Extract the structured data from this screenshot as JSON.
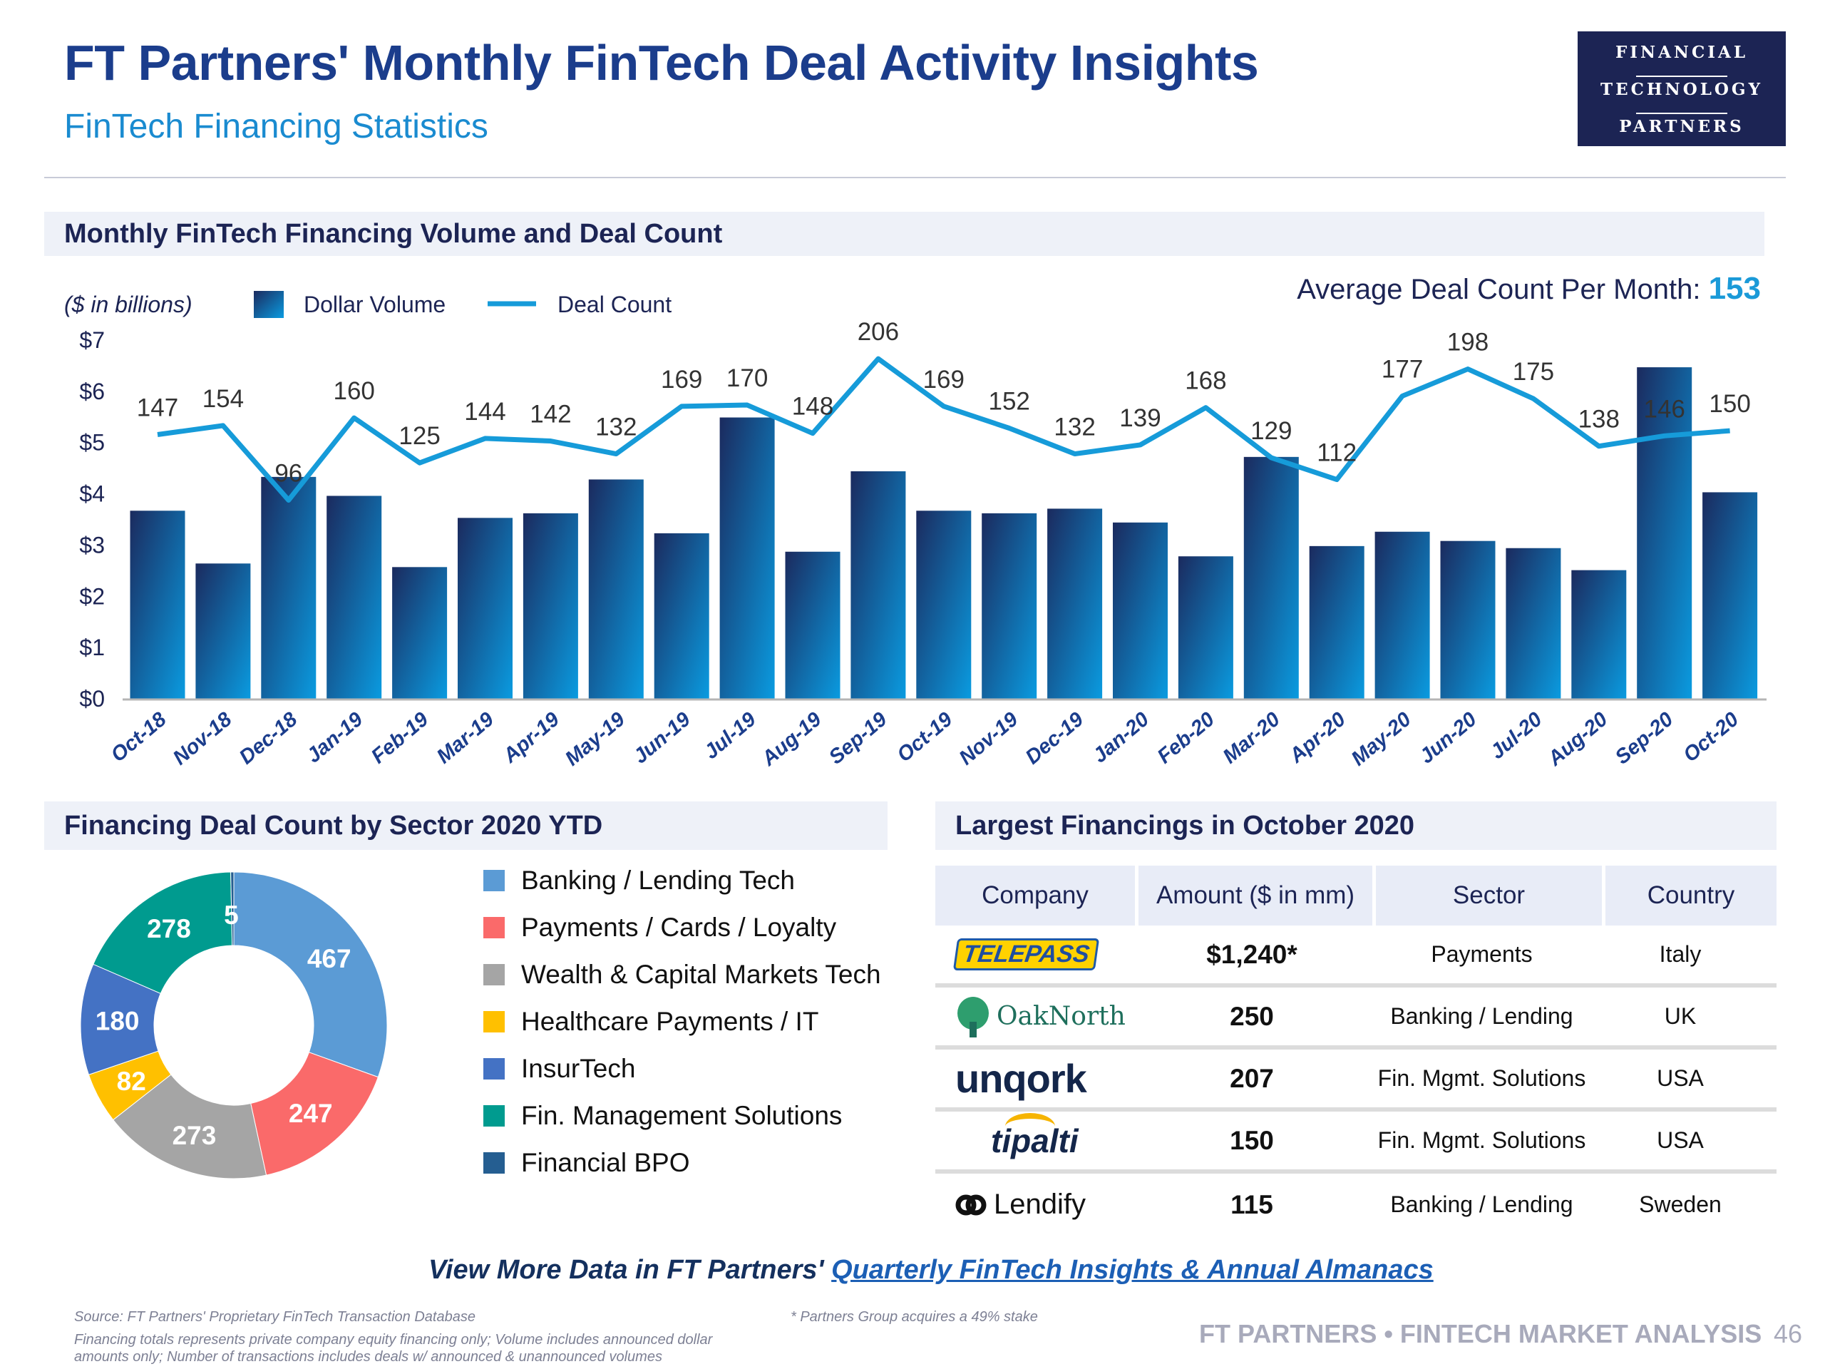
{
  "header": {
    "title": "FT Partners' Monthly FinTech Deal Activity Insights",
    "subtitle": "FinTech Financing Statistics",
    "logo_lines": [
      "FINANCIAL",
      "TECHNOLOGY",
      "PARTNERS"
    ]
  },
  "sections": {
    "monthly": "Monthly FinTech Financing Volume and Deal Count",
    "sector": "Financing Deal Count by Sector 2020 YTD",
    "largest": "Largest Financings in October 2020"
  },
  "avg": {
    "label": "Average Deal Count Per Month:",
    "value": "153"
  },
  "chart_data": [
    {
      "type": "bar+line",
      "title": "Monthly FinTech Financing Volume and Deal Count",
      "ylabel": "($ in billions)",
      "yticks": [
        "$0",
        "$1",
        "$2",
        "$3",
        "$4",
        "$5",
        "$6",
        "$7"
      ],
      "ylim": [
        0,
        7
      ],
      "y2lim": [
        -58.5,
        220.5
      ],
      "legend": [
        "Dollar Volume",
        "Deal Count"
      ],
      "legend_position": "top-left",
      "categories": [
        "Oct-18",
        "Nov-18",
        "Dec-18",
        "Jan-19",
        "Feb-19",
        "Mar-19",
        "Apr-19",
        "May-19",
        "Jun-19",
        "Jul-19",
        "Aug-19",
        "Sep-19",
        "Oct-19",
        "Nov-19",
        "Dec-19",
        "Jan-20",
        "Feb-20",
        "Mar-20",
        "Apr-20",
        "May-20",
        "Jun-20",
        "Jul-20",
        "Aug-20",
        "Sep-20",
        "Oct-20"
      ],
      "series": [
        {
          "name": "Dollar Volume",
          "type": "bar",
          "values": [
            3.67,
            2.64,
            4.33,
            3.96,
            2.57,
            3.53,
            3.62,
            4.28,
            3.23,
            5.49,
            2.87,
            4.44,
            3.67,
            3.62,
            3.71,
            3.44,
            2.78,
            4.72,
            2.98,
            3.26,
            3.08,
            2.94,
            2.51,
            6.47,
            4.03
          ]
        },
        {
          "name": "Deal Count",
          "type": "line",
          "values": [
            147,
            154,
            96,
            160,
            125,
            144,
            142,
            132,
            169,
            170,
            148,
            206,
            169,
            152,
            132,
            139,
            168,
            129,
            112,
            177,
            198,
            175,
            138,
            146,
            150
          ]
        }
      ],
      "colors": {
        "bar_top": "#1b2a5e",
        "bar_bottom": "#0a9be0",
        "line": "#169bd9"
      }
    },
    {
      "type": "pie",
      "title": "Financing Deal Count by Sector 2020 YTD",
      "donut": true,
      "legend_position": "right",
      "slices": [
        {
          "label": "Banking / Lending Tech",
          "value": 467,
          "color": "#5b9bd5"
        },
        {
          "label": "Payments / Cards / Loyalty",
          "value": 247,
          "color": "#fa6a6a"
        },
        {
          "label": "Wealth & Capital Markets Tech",
          "value": 273,
          "color": "#a5a5a5"
        },
        {
          "label": "Healthcare Payments / IT",
          "value": 82,
          "color": "#ffc000"
        },
        {
          "label": "InsurTech",
          "value": 180,
          "color": "#4472c4"
        },
        {
          "label": "Fin. Management Solutions",
          "value": 278,
          "color": "#009b8f"
        },
        {
          "label": "Financial BPO",
          "value": 5,
          "color": "#255e91"
        }
      ]
    }
  ],
  "table": {
    "headers": [
      "Company",
      "Amount ($ in mm)",
      "Sector",
      "Country"
    ],
    "rows": [
      {
        "company": "TELEPASS",
        "amount": "$1,240*",
        "sector": "Payments",
        "country": "Italy"
      },
      {
        "company": "OakNorth",
        "amount": "250",
        "sector": "Banking / Lending",
        "country": "UK"
      },
      {
        "company": "unqork",
        "amount": "207",
        "sector": "Fin. Mgmt. Solutions",
        "country": "USA"
      },
      {
        "company": "tipalti",
        "amount": "150",
        "sector": "Fin. Mgmt. Solutions",
        "country": "USA"
      },
      {
        "company": "Lendify",
        "amount": "115",
        "sector": "Banking / Lending",
        "country": "Sweden"
      }
    ]
  },
  "cta": {
    "prefix": "View More Data in FT Partners' ",
    "link": "Quarterly FinTech Insights & Annual Almanacs"
  },
  "footer": {
    "source": "Source: FT Partners' Proprietary FinTech Transaction Database",
    "note1": "Financing totals represents private company equity financing only; Volume includes announced dollar",
    "note2": "amounts only; Number of transactions includes deals w/ announced & unannounced volumes",
    "footnote": "* Partners Group acquires a 49% stake",
    "brand": "FT PARTNERS • FINTECH MARKET ANALYSIS",
    "page": "46"
  }
}
